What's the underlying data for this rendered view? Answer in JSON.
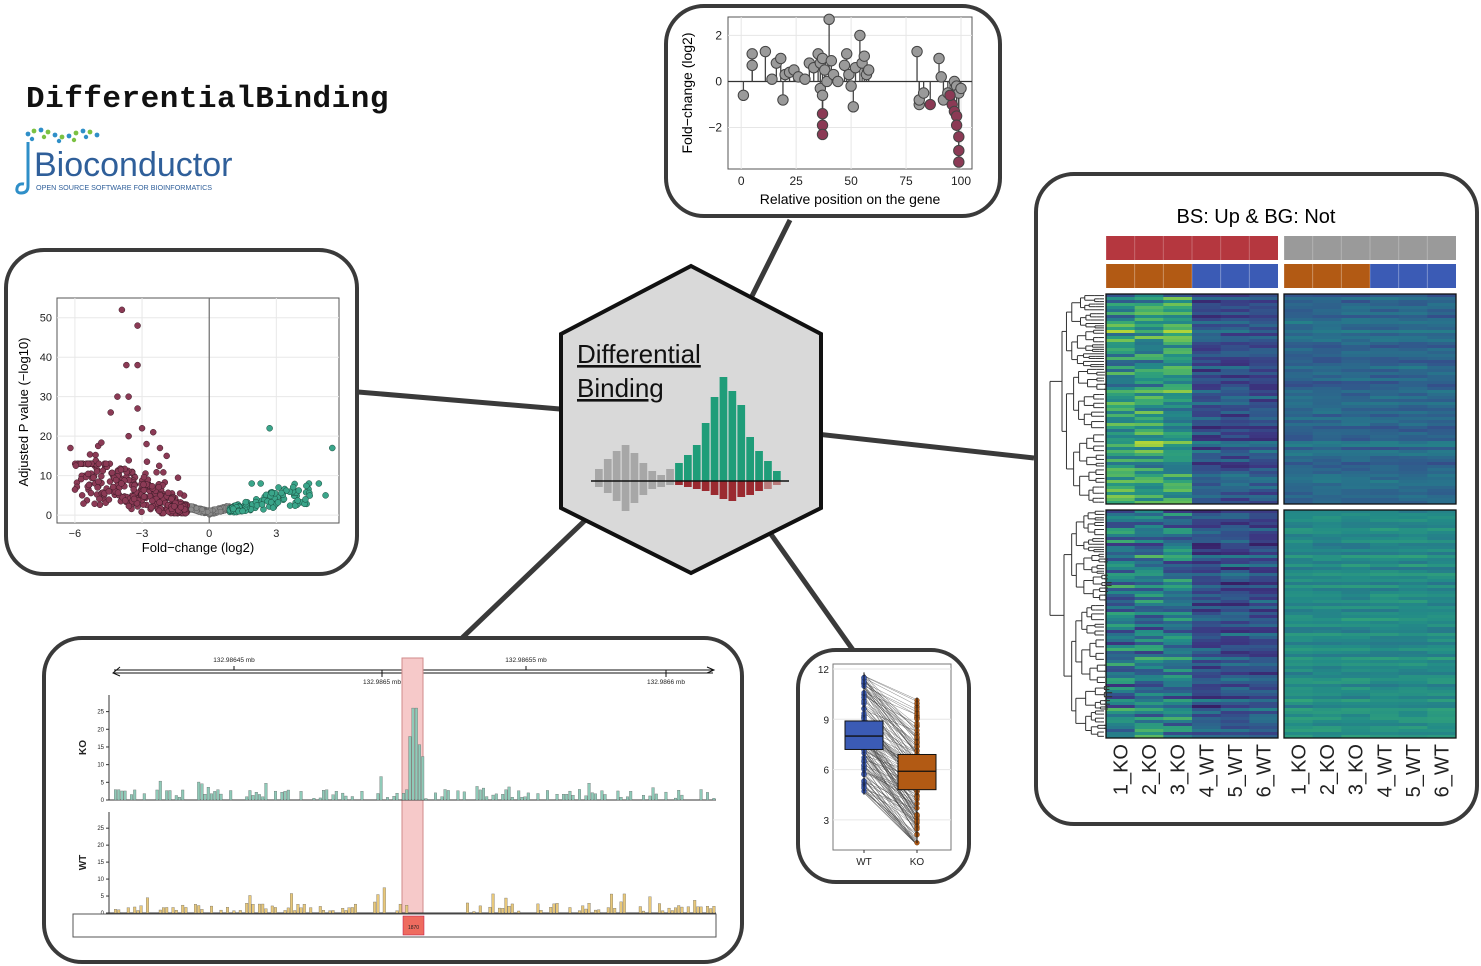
{
  "title": "DifferentialBinding",
  "logo": {
    "name": "Bioconductor",
    "tagline": "OPEN SOURCE SOFTWARE FOR BIOINFORMATICS"
  },
  "hub": {
    "line1": "Differential",
    "line2": "Binding",
    "colors": {
      "gray": "#9e9e9e",
      "green": "#1f9d79",
      "red": "#9b2a30",
      "hex_fill": "#d9d9d9"
    }
  },
  "lollipop": {
    "xlabel": "Relative position on the gene",
    "ylabel": "Fold−change (log2)",
    "xticks": [
      "0",
      "25",
      "50",
      "75",
      "100"
    ],
    "yticks": [
      "2",
      "0",
      "−2"
    ],
    "colors": {
      "not_sig": "#9a9a9a",
      "sig": "#8b3a55"
    }
  },
  "volcano": {
    "xlabel": "Fold−change (log2)",
    "ylabel": "Adjusted P value (−log10)",
    "xticks": [
      "−6",
      "−3",
      "0",
      "3"
    ],
    "yticks": [
      "0",
      "10",
      "20",
      "30",
      "40",
      "50"
    ],
    "colors": {
      "down": "#8b3a55",
      "up": "#3aa58a",
      "ns": "#8a8a8a"
    }
  },
  "heatmap": {
    "title": "BS: Up & BG: Not",
    "columns_left": [
      "1_KO",
      "2_KO",
      "3_KO",
      "4_WT",
      "5_WT",
      "6_WT"
    ],
    "columns_right": [
      "1_KO",
      "2_KO",
      "3_KO",
      "4_WT",
      "5_WT",
      "6_WT"
    ],
    "annot_colors": {
      "bs": "#b5373f",
      "bg": "#9a9a9a",
      "ko": "#b25a14",
      "wt": "#3b5bb5"
    }
  },
  "tracks": {
    "coords": [
      "132.98645 mb",
      "132.98655 mb",
      "132.9865 mb",
      "132.9866 mb"
    ],
    "tracks": [
      "KO",
      "WT"
    ],
    "yticks": [
      "0",
      "5",
      "10",
      "15",
      "20",
      "25"
    ],
    "region_label": "1870",
    "colors": {
      "ko": "#8fcab8",
      "wt": "#e8c87a",
      "highlight": "#f4b8b8",
      "region": "#ee6b5f"
    }
  },
  "boxplot": {
    "categories": [
      "WT",
      "KO"
    ],
    "yticks": [
      "12",
      "9",
      "6",
      "3"
    ],
    "colors": {
      "wt": "#3b5bb5",
      "ko": "#b25a14"
    }
  }
}
